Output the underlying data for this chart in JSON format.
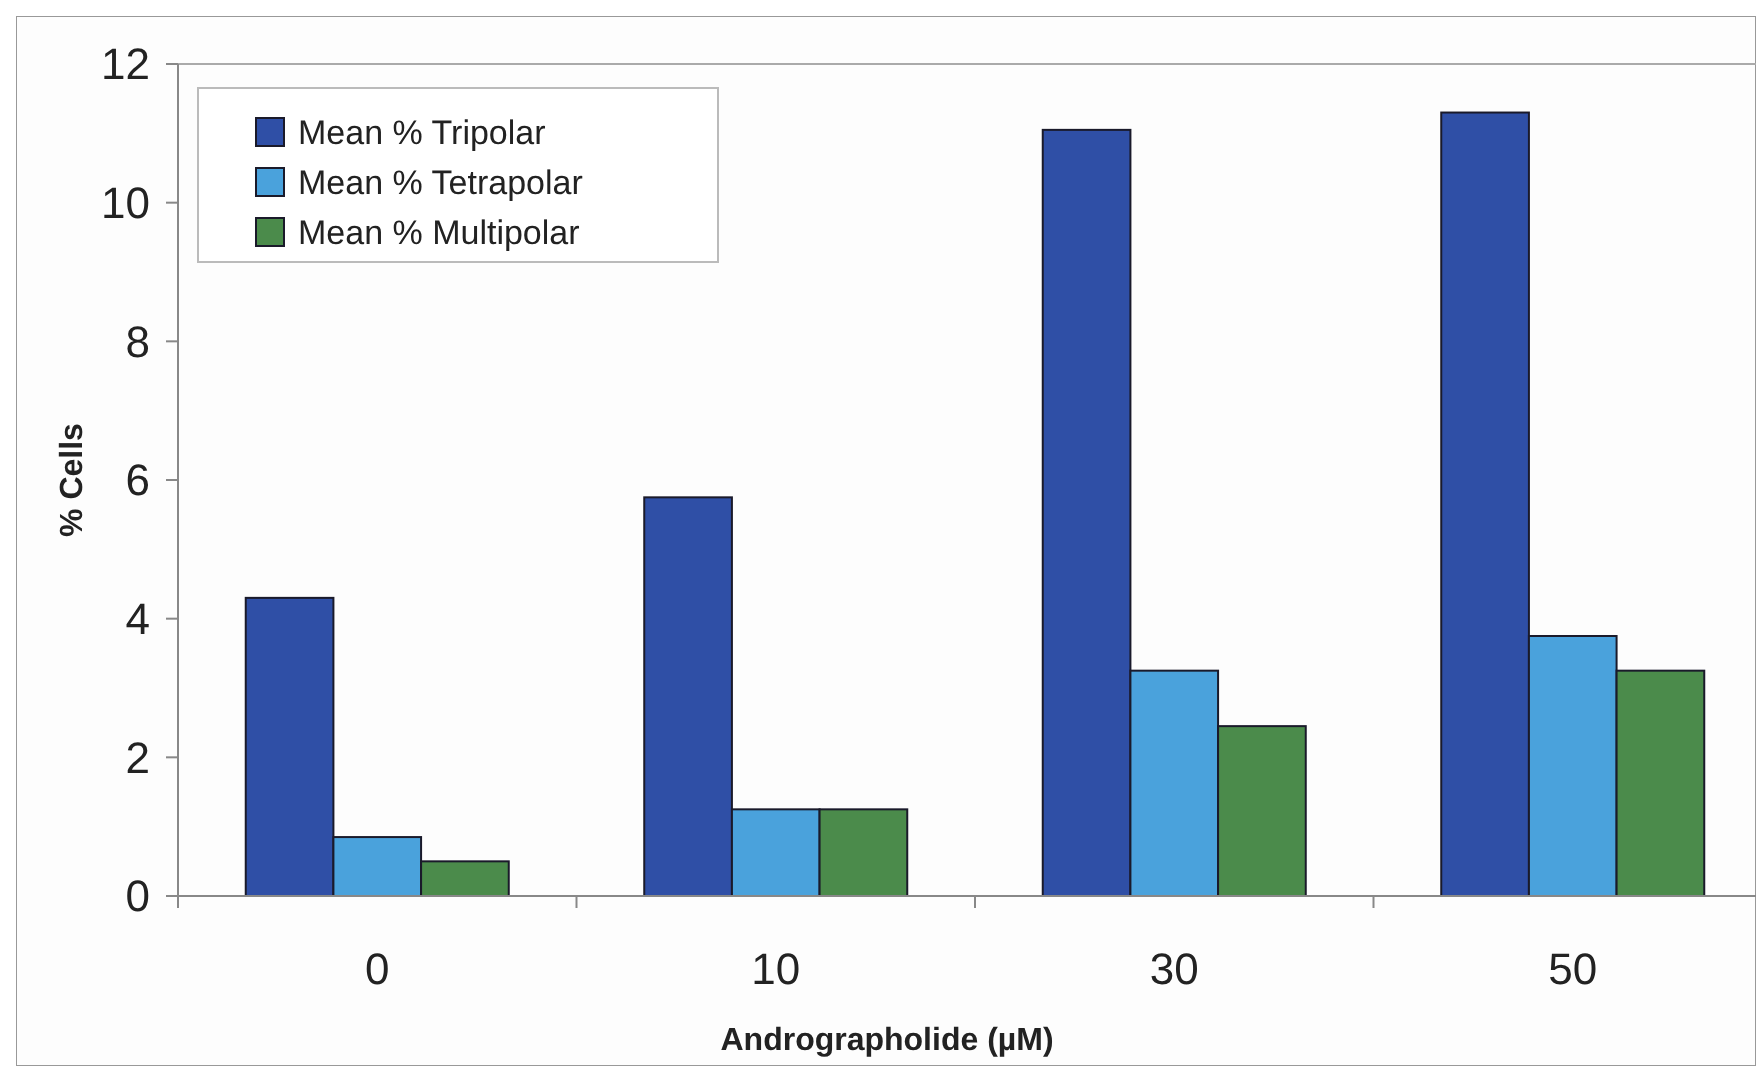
{
  "chart_data": {
    "type": "bar",
    "xlabel": "Andrographolide (µM)",
    "ylabel": "% Cells",
    "categories": [
      "0",
      "10",
      "30",
      "50"
    ],
    "series": [
      {
        "name": "Mean % Tripolar",
        "color": "#2f4fa6",
        "values": [
          4.3,
          5.75,
          11.05,
          11.3
        ]
      },
      {
        "name": "Mean % Tetrapolar",
        "color": "#4aa2dc",
        "values": [
          0.85,
          1.25,
          3.25,
          3.75
        ]
      },
      {
        "name": "Mean % Multipolar",
        "color": "#4b8b4b",
        "values": [
          0.5,
          1.25,
          2.45,
          3.25
        ]
      }
    ],
    "ylim": [
      0,
      12
    ],
    "yticks": [
      0,
      2,
      4,
      6,
      8,
      10,
      12
    ],
    "grid": false,
    "legend": "top left"
  }
}
